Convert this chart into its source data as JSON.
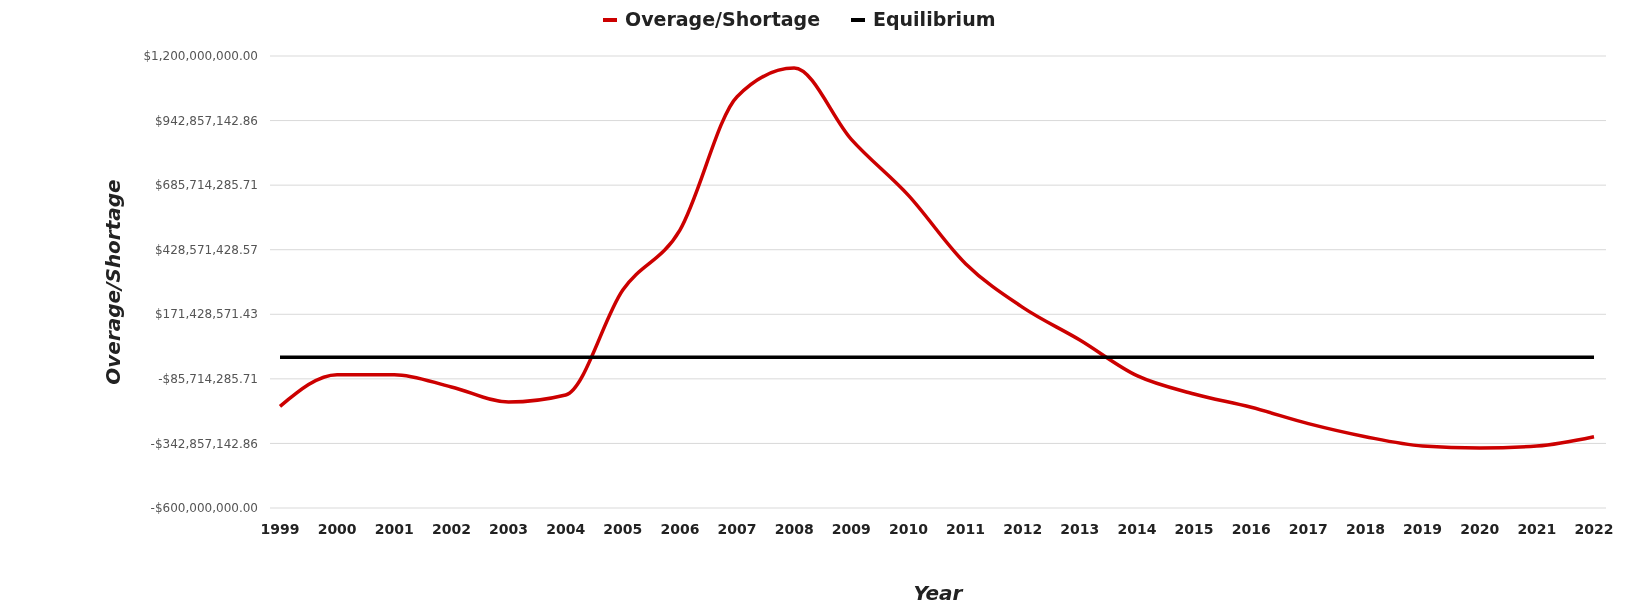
{
  "chart_data": {
    "type": "line",
    "xlabel": "Year",
    "ylabel": "Overage/Shortage",
    "categories": [
      "1999",
      "2000",
      "2001",
      "2002",
      "2003",
      "2004",
      "2005",
      "2006",
      "2007",
      "2008",
      "2009",
      "2010",
      "2011",
      "2012",
      "2013",
      "2014",
      "2015",
      "2016",
      "2017",
      "2018",
      "2019",
      "2020",
      "2021",
      "2022"
    ],
    "series": [
      {
        "name": "Overage/Shortage",
        "color": "#cc0000",
        "values": [
          -195000000,
          -69000000,
          -69000000,
          -118000000,
          -178000000,
          -150000000,
          268000000,
          507000000,
          1038000000,
          1152000000,
          868000000,
          645000000,
          373000000,
          199000000,
          69000000,
          -73000000,
          -146000000,
          -199000000,
          -264000000,
          -316000000,
          -353000000,
          -361000000,
          -353000000,
          -316000000
        ]
      },
      {
        "name": "Equilibrium",
        "color": "#000000",
        "values": [
          0,
          0,
          0,
          0,
          0,
          0,
          0,
          0,
          0,
          0,
          0,
          0,
          0,
          0,
          0,
          0,
          0,
          0,
          0,
          0,
          0,
          0,
          0,
          0
        ]
      }
    ],
    "ylim": [
      -600000000,
      1200000000
    ],
    "yticks": [
      {
        "value": -600000000,
        "label": "-$600,000,000.00"
      },
      {
        "value": -342857142.86,
        "label": "-$342,857,142.86"
      },
      {
        "value": -85714285.71,
        "label": "-$85,714,285.71"
      },
      {
        "value": 171428571.43,
        "label": "$171,428,571.43"
      },
      {
        "value": 428571428.57,
        "label": "$428,571,428.57"
      },
      {
        "value": 685714285.71,
        "label": "$685,714,285.71"
      },
      {
        "value": 942857142.86,
        "label": "$942,857,142.86"
      },
      {
        "value": 1200000000,
        "label": "$1,200,000,000.00"
      }
    ],
    "grid": "y",
    "legend": "top",
    "marker": "none",
    "line_style": "solid"
  }
}
